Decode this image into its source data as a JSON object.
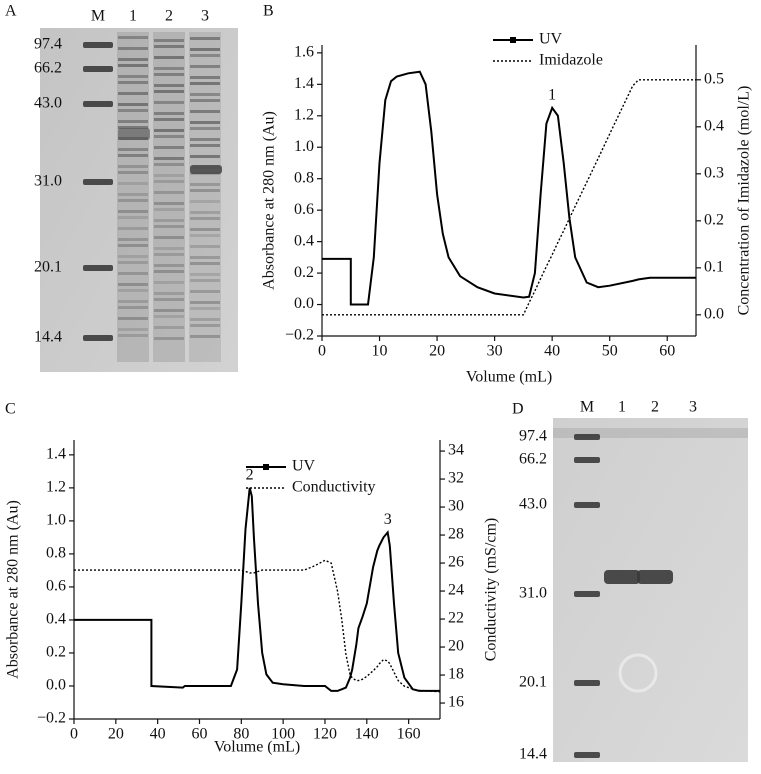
{
  "gels": [
    {
      "panel": "A",
      "lanes": [
        "M",
        "1",
        "2",
        "3"
      ],
      "markers": [
        "97.4",
        "66.2",
        "43.0",
        "31.0",
        "20.1",
        "14.4"
      ]
    },
    {
      "panel": "D",
      "lanes": [
        "M",
        "1",
        "2",
        "3"
      ],
      "markers": [
        "97.4",
        "66.2",
        "43.0",
        "31.0",
        "20.1",
        "14.4"
      ]
    }
  ],
  "chart_data": [
    {
      "type": "line",
      "panel": "B",
      "xlabel": "Volume (mL)",
      "ylabel": "Absorbance at 280 nm (Au)",
      "y2label": "Concentration of Imidazole (mol/L)",
      "x": [
        0,
        5,
        5,
        8,
        9,
        10,
        11,
        12,
        13,
        15,
        17,
        18,
        19,
        20,
        21,
        22,
        24,
        27,
        30,
        35,
        36,
        37,
        38,
        39,
        40,
        41,
        42,
        43,
        44,
        46,
        48,
        50,
        54,
        55,
        57,
        65
      ],
      "series": [
        {
          "name": "UV",
          "color": "#000000",
          "style": "solid",
          "marker": "square",
          "values": [
            0.29,
            0.29,
            0,
            0,
            0.3,
            0.9,
            1.3,
            1.42,
            1.45,
            1.47,
            1.48,
            1.4,
            1.1,
            0.7,
            0.45,
            0.3,
            0.18,
            0.11,
            0.07,
            0.045,
            0.05,
            0.2,
            0.7,
            1.15,
            1.25,
            1.2,
            0.9,
            0.55,
            0.3,
            0.14,
            0.11,
            0.12,
            0.15,
            0.16,
            0.17,
            0.17
          ]
        },
        {
          "name": "Imidazole",
          "color": "#000000",
          "style": "dotted",
          "axis": "y2",
          "values": [
            0,
            0,
            0,
            0,
            0,
            0,
            0,
            0,
            0,
            0,
            0,
            0,
            0,
            0,
            0,
            0,
            0,
            0,
            0,
            0,
            0.026,
            0.051,
            0.077,
            0.103,
            0.128,
            0.154,
            0.179,
            0.205,
            0.231,
            0.282,
            0.333,
            0.385,
            0.487,
            0.5,
            0.5,
            0.5
          ]
        }
      ],
      "annotations": [
        {
          "text": "1",
          "x": 40,
          "y": 1.25
        }
      ],
      "xlim": [
        0,
        65
      ],
      "xticks": [
        0,
        10,
        20,
        30,
        40,
        50,
        60
      ],
      "ylim": [
        -0.2,
        1.65
      ],
      "yticks": [
        {
          "value": -0.2,
          "label": "−0.2"
        },
        {
          "value": 0,
          "label": "0.0"
        },
        0.2,
        0.4,
        0.6,
        0.8,
        {
          "value": 1,
          "label": "1.0"
        },
        1.2,
        1.4,
        1.6
      ],
      "y2lim": [
        -0.045,
        0.574
      ],
      "y2ticks": [
        {
          "value": 0,
          "label": "0.0"
        },
        0.1,
        0.2,
        0.3,
        0.4,
        0.5
      ],
      "legend": "upper right",
      "grid": false
    },
    {
      "type": "line",
      "panel": "C",
      "xlabel": "Volume (mL)",
      "ylabel": "Absorbance at 280 nm (Au)",
      "y2label": "Conductivity (mS/cm)",
      "x": [
        0,
        37,
        37,
        52,
        53,
        75,
        78,
        80,
        82,
        84,
        85,
        86,
        88,
        90,
        92,
        95,
        100,
        110,
        115,
        120,
        123,
        126,
        128,
        130,
        132,
        133,
        135,
        136,
        138,
        140,
        143,
        145,
        146,
        148,
        150,
        151,
        153,
        155,
        158,
        162,
        165,
        175
      ],
      "series": [
        {
          "name": "UV",
          "color": "#000000",
          "style": "solid",
          "marker": "square",
          "values": [
            0.4,
            0.4,
            0,
            -0.01,
            0,
            0,
            0.1,
            0.5,
            0.95,
            1.2,
            1.15,
            0.9,
            0.5,
            0.2,
            0.07,
            0.02,
            0.01,
            0,
            0,
            0,
            -0.03,
            -0.03,
            -0.02,
            -0.01,
            0.05,
            0.1,
            0.25,
            0.35,
            0.42,
            0.5,
            0.72,
            0.82,
            0.85,
            0.9,
            0.93,
            0.85,
            0.5,
            0.2,
            0.05,
            -0.02,
            -0.03,
            -0.03
          ]
        },
        {
          "name": "Conductivity",
          "color": "#000000",
          "style": "dotted",
          "axis": "y2",
          "values": [
            25.5,
            25.5,
            25.5,
            25.5,
            25.5,
            25.5,
            25.5,
            25.5,
            25.4,
            25.3,
            25.3,
            25.3,
            25.4,
            25.5,
            25.5,
            25.5,
            25.5,
            25.5,
            25.8,
            26.2,
            26,
            24,
            22,
            19.5,
            18,
            17.8,
            17.6,
            17.6,
            17.7,
            17.9,
            18.3,
            18.6,
            18.8,
            19.1,
            19,
            18.8,
            18.2,
            17.6,
            17.2,
            17,
            16.9,
            16.8
          ]
        }
      ],
      "annotations": [
        {
          "text": "2",
          "x": 84,
          "y": 1.2
        },
        {
          "text": "3",
          "x": 150,
          "y": 0.93
        }
      ],
      "xlim": [
        0,
        175
      ],
      "xticks": [
        0,
        20,
        40,
        60,
        80,
        100,
        120,
        140,
        160
      ],
      "ylim": [
        -0.2,
        1.49
      ],
      "yticks": [
        {
          "value": -0.2,
          "label": "−0.2"
        },
        {
          "value": 0,
          "label": "0.0"
        },
        0.2,
        0.4,
        0.6,
        0.8,
        {
          "value": 1,
          "label": "1.0"
        },
        1.2,
        1.4
      ],
      "y2lim": [
        14.86,
        34.79
      ],
      "y2ticks": [
        16,
        18,
        20,
        22,
        24,
        26,
        28,
        30,
        32,
        34
      ],
      "legend": "upper right",
      "grid": false
    }
  ]
}
